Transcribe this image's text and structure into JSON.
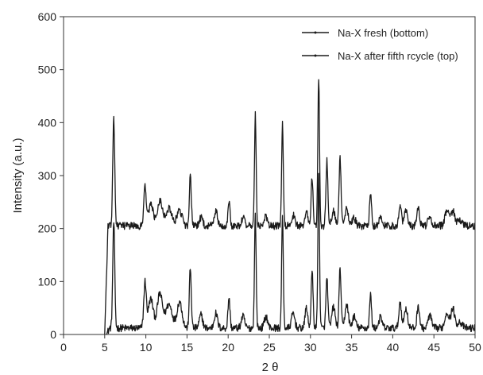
{
  "chart_data": {
    "type": "line",
    "title": "",
    "xlabel": "2 θ",
    "ylabel": "Intensity (a.u.)",
    "xlim": [
      0,
      50
    ],
    "ylim": [
      0,
      600
    ],
    "x_ticks": [
      0,
      5,
      10,
      15,
      20,
      25,
      30,
      35,
      40,
      45,
      50
    ],
    "y_ticks": [
      0,
      100,
      200,
      300,
      400,
      500,
      600
    ],
    "grid": false,
    "legend_position": "top-right",
    "line_color": "#1a1a1a",
    "series": [
      {
        "name": "Na-X fresh (bottom)",
        "baseline": 12,
        "start_x": 5.2,
        "peaks": [
          [
            6.1,
            200,
            0.12
          ],
          [
            9.9,
            85,
            0.15
          ],
          [
            10.6,
            55,
            0.3
          ],
          [
            11.7,
            65,
            0.3
          ],
          [
            12.8,
            45,
            0.4
          ],
          [
            14.1,
            50,
            0.3
          ],
          [
            15.4,
            112,
            0.12
          ],
          [
            16.7,
            25,
            0.2
          ],
          [
            18.5,
            28,
            0.2
          ],
          [
            20.1,
            58,
            0.12
          ],
          [
            21.8,
            22,
            0.2
          ],
          [
            23.3,
            215,
            0.1
          ],
          [
            24.6,
            22,
            0.2
          ],
          [
            26.6,
            212,
            0.1
          ],
          [
            27.9,
            28,
            0.2
          ],
          [
            29.5,
            40,
            0.15
          ],
          [
            30.2,
            105,
            0.12
          ],
          [
            31.0,
            290,
            0.1
          ],
          [
            32.0,
            95,
            0.12
          ],
          [
            32.8,
            40,
            0.2
          ],
          [
            33.6,
            112,
            0.12
          ],
          [
            34.4,
            45,
            0.2
          ],
          [
            35.3,
            22,
            0.2
          ],
          [
            37.3,
            62,
            0.12
          ],
          [
            38.5,
            20,
            0.2
          ],
          [
            40.9,
            50,
            0.15
          ],
          [
            41.6,
            38,
            0.2
          ],
          [
            43.1,
            43,
            0.15
          ],
          [
            44.5,
            25,
            0.2
          ],
          [
            46.6,
            30,
            0.25
          ],
          [
            47.3,
            38,
            0.2
          ],
          [
            48.1,
            12,
            0.3
          ]
        ]
      },
      {
        "name": "Na-X after fifth rcycle (top)",
        "baseline": 205,
        "start_x": 5.0,
        "peaks": [
          [
            6.1,
            200,
            0.12
          ],
          [
            9.9,
            72,
            0.15
          ],
          [
            10.6,
            40,
            0.3
          ],
          [
            11.7,
            48,
            0.3
          ],
          [
            12.8,
            32,
            0.4
          ],
          [
            14.1,
            28,
            0.3
          ],
          [
            15.4,
            92,
            0.12
          ],
          [
            16.7,
            15,
            0.2
          ],
          [
            18.5,
            28,
            0.2
          ],
          [
            20.1,
            48,
            0.12
          ],
          [
            21.8,
            15,
            0.2
          ],
          [
            23.3,
            210,
            0.1
          ],
          [
            24.6,
            18,
            0.2
          ],
          [
            26.6,
            193,
            0.1
          ],
          [
            27.9,
            20,
            0.2
          ],
          [
            29.5,
            30,
            0.15
          ],
          [
            30.2,
            92,
            0.12
          ],
          [
            31.0,
            280,
            0.1
          ],
          [
            32.0,
            123,
            0.12
          ],
          [
            32.8,
            28,
            0.2
          ],
          [
            33.6,
            128,
            0.12
          ],
          [
            34.4,
            35,
            0.2
          ],
          [
            35.3,
            15,
            0.2
          ],
          [
            37.3,
            65,
            0.12
          ],
          [
            38.5,
            15,
            0.2
          ],
          [
            40.9,
            42,
            0.15
          ],
          [
            41.6,
            32,
            0.2
          ],
          [
            43.1,
            35,
            0.15
          ],
          [
            44.5,
            18,
            0.2
          ],
          [
            46.6,
            30,
            0.25
          ],
          [
            47.3,
            28,
            0.2
          ],
          [
            48.1,
            10,
            0.3
          ]
        ]
      }
    ]
  }
}
